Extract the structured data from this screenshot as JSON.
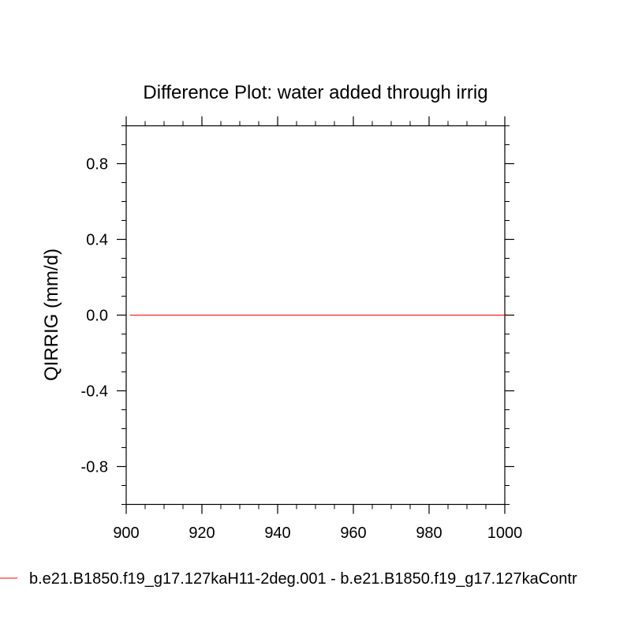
{
  "chart_data": {
    "type": "line",
    "title": "Difference Plot: water added through irrig",
    "xlabel": "",
    "ylabel": "QIRRIG  (mm/d)",
    "xlim": [
      900,
      1000
    ],
    "ylim": [
      -1.0,
      1.0
    ],
    "x_ticks": [
      "900",
      "920",
      "940",
      "960",
      "980",
      "1000"
    ],
    "y_ticks": [
      "0.8",
      "0.4",
      "0.0",
      "-0.4",
      "-0.8"
    ],
    "grid": false,
    "legend_position": "bottom",
    "series": [
      {
        "name": "b.e21.B1850.f19_g17.127kaH11-2deg.001 - b.e21.B1850.f19_g17.127kaContr",
        "color": "#ff0000",
        "x": [
          901,
          1000
        ],
        "y": [
          0.0,
          0.0
        ]
      }
    ]
  }
}
